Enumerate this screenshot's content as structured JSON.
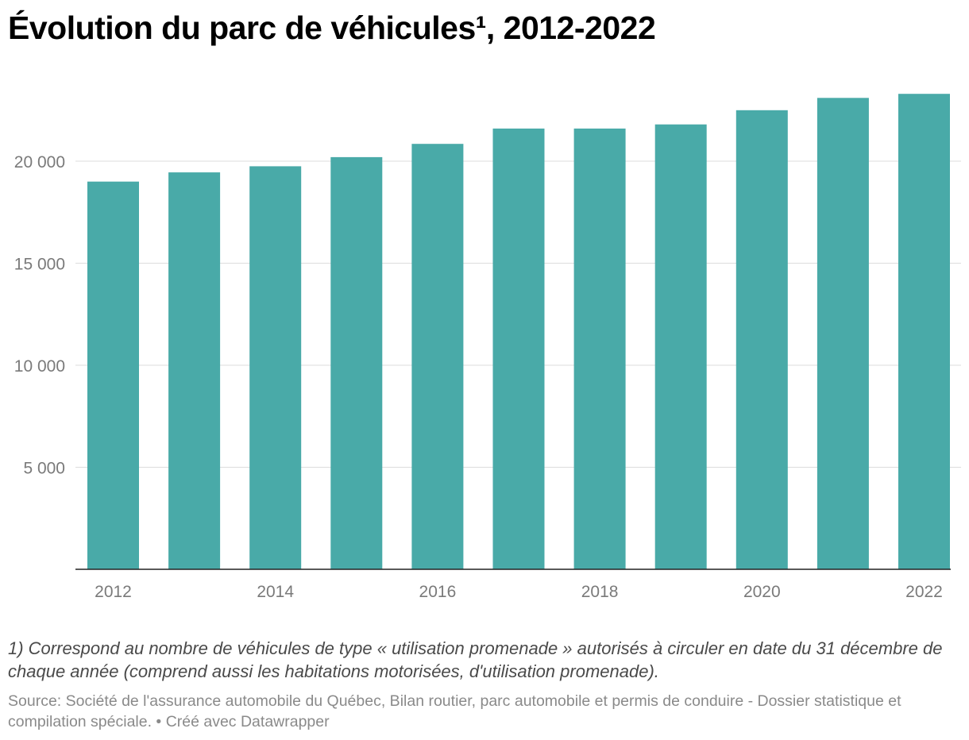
{
  "title": "Évolution du parc de véhicules¹, 2012-2022",
  "notes": "1) Correspond au nombre de véhicules de type « utilisation promenade » autorisés à circuler en date du 31 décembre de chaque année (comprend aussi les habitations motorisées, d'utilisation promenade).",
  "source": {
    "text": "Source: Société de l'assurance automobile du Québec, Bilan routier, parc automobile et permis de conduire - Dossier statistique et compilation spéciale.",
    "credit": "Créé avec Datawrapper"
  },
  "chart_data": {
    "type": "bar",
    "title": "Évolution du parc de véhicules¹, 2012-2022",
    "xlabel": "",
    "ylabel": "",
    "categories": [
      "2012",
      "2013",
      "2014",
      "2015",
      "2016",
      "2017",
      "2018",
      "2019",
      "2020",
      "2021",
      "2022"
    ],
    "values": [
      19000,
      19450,
      19750,
      20200,
      20850,
      21600,
      21600,
      21800,
      22500,
      23100,
      23300
    ],
    "ylim": [
      0,
      24000
    ],
    "yticks": [
      5000,
      10000,
      15000,
      20000
    ],
    "ytick_labels": [
      "5 000",
      "10 000",
      "15 000",
      "20 000"
    ],
    "xtick_labels": [
      "2012",
      "2014",
      "2016",
      "2018",
      "2020",
      "2022"
    ],
    "bar_color": "#49aaa8",
    "grid": true,
    "legend": "none"
  }
}
